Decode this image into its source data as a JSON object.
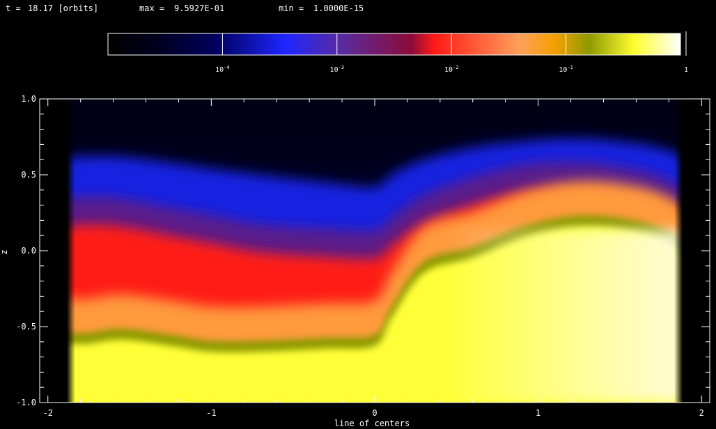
{
  "header": {
    "t_label": "t =",
    "t_value": "18.17 [orbits]",
    "max_label": "max =",
    "max_value": "9.5927E-01",
    "min_label": "min =",
    "min_value": "1.0000E-15"
  },
  "colorbar": {
    "scale": "log",
    "range": [
      1e-05,
      1
    ],
    "tick_values": [
      0.0001,
      0.001,
      0.01,
      0.1,
      1
    ],
    "tick_labels": [
      {
        "base": "10",
        "exp": "-4"
      },
      {
        "base": "10",
        "exp": "-3"
      },
      {
        "base": "10",
        "exp": "-2"
      },
      {
        "base": "10",
        "exp": "-1"
      },
      {
        "base": "1",
        "exp": ""
      }
    ],
    "colors": [
      {
        "at": 0.0,
        "color": "#000000"
      },
      {
        "at": 0.09,
        "color": "#000020"
      },
      {
        "at": 0.19,
        "color": "#000060"
      },
      {
        "at": 0.31,
        "color": "#1f26ff"
      },
      {
        "at": 0.41,
        "color": "#5a2b9c"
      },
      {
        "at": 0.53,
        "color": "#8c0b3a"
      },
      {
        "at": 0.57,
        "color": "#ff1a16"
      },
      {
        "at": 0.66,
        "color": "#ff6a40"
      },
      {
        "at": 0.72,
        "color": "#ffa05a"
      },
      {
        "at": 0.78,
        "color": "#f5a000"
      },
      {
        "at": 0.84,
        "color": "#8f9a00"
      },
      {
        "at": 0.92,
        "color": "#ffff30"
      },
      {
        "at": 1.0,
        "color": "#ffffff"
      }
    ]
  },
  "chart_data": {
    "type": "heatmap",
    "title": "",
    "xlabel": "line of centers",
    "ylabel": "z",
    "xlim": [
      -2.05,
      2.05
    ],
    "ylim": [
      -1.0,
      1.0
    ],
    "x_ticks": [
      -2,
      -1,
      0,
      1,
      2
    ],
    "x_tick_labels": [
      "-2",
      "-1",
      "0",
      "1",
      "2"
    ],
    "y_ticks": [
      -1.0,
      -0.5,
      0.0,
      0.5,
      1.0
    ],
    "y_tick_labels": [
      "-1.0",
      "-0.5",
      "0.0",
      "0.5",
      "1.0"
    ],
    "data_extent_x": [
      -2.0,
      2.0
    ],
    "layer_boundaries": {
      "x": [
        -2.0,
        -1.8,
        -1.55,
        -1.25,
        -1.0,
        -0.7,
        -0.3,
        0.0,
        0.1,
        0.3,
        0.6,
        0.9,
        1.2,
        1.5,
        1.8,
        2.0
      ],
      "blue_edge": [
        0.6,
        0.62,
        0.62,
        0.58,
        0.54,
        0.5,
        0.45,
        0.42,
        0.5,
        0.6,
        0.68,
        0.72,
        0.74,
        0.72,
        0.66,
        0.5
      ],
      "red_top": [
        0.12,
        0.17,
        0.16,
        0.1,
        0.05,
        -0.01,
        -0.04,
        -0.05,
        0.03,
        0.18,
        0.3,
        0.38,
        0.4,
        0.37,
        0.28,
        0.05
      ],
      "green_band": [
        -0.54,
        -0.57,
        -0.54,
        -0.58,
        -0.62,
        -0.62,
        -0.6,
        -0.58,
        -0.4,
        -0.1,
        0.0,
        0.13,
        0.2,
        0.19,
        0.1,
        -0.15
      ]
    }
  }
}
